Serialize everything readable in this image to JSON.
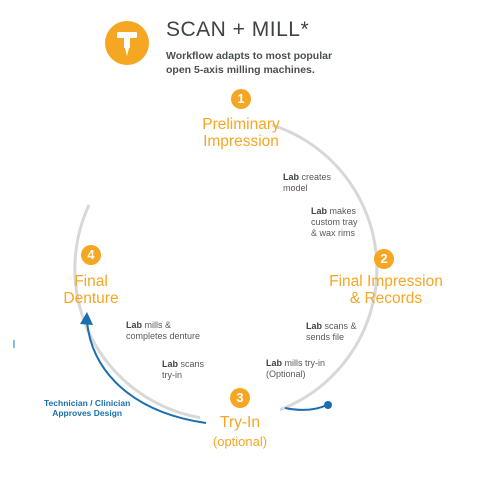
{
  "header": {
    "logo_icon": "milling-tool-icon",
    "title": "SCAN + MILL*",
    "subtitle_line1": "Workflow adapts to most popular",
    "subtitle_line2": "open 5-axis milling machines."
  },
  "steps": [
    {
      "number": "1",
      "line1": "Preliminary",
      "line2": "Impression"
    },
    {
      "number": "2",
      "line1": "Final Impression",
      "line2": "& Records"
    },
    {
      "number": "3",
      "line1": "Try-In",
      "line2": "(optional)"
    },
    {
      "number": "4",
      "line1": "Final",
      "line2": "Denture"
    }
  ],
  "notes": [
    {
      "bold": "Lab",
      "text1": " creates",
      "text2": "model"
    },
    {
      "bold": "Lab",
      "text1": " makes",
      "text2": "custom tray",
      "text3": "& wax rims"
    },
    {
      "bold": "Lab",
      "text1": " scans &",
      "text2": "sends file"
    },
    {
      "bold": "Lab",
      "text1": " mills try-in",
      "text2": "(Optional)"
    },
    {
      "bold": "Lab",
      "text1": " scans",
      "text2": "try-in"
    },
    {
      "bold": "Lab",
      "text1": " mills &",
      "text2": "completes denture"
    }
  ],
  "blue_note": {
    "line1": "Technician / Clinician",
    "line2": "Approves Design"
  },
  "colors": {
    "accent": "#f5a623",
    "blue": "#1a6fae",
    "ring": "#d8d8d8"
  }
}
